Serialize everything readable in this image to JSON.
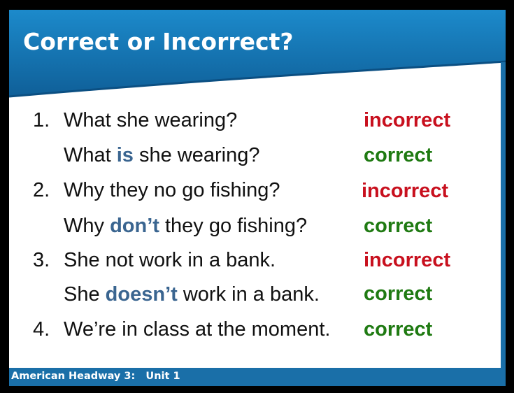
{
  "title": "Correct or Incorrect?",
  "footer": "American Headway 3:   Unit 1",
  "colors": {
    "header_blue": "#1a7fbf",
    "incorrect_red": "#c8101e",
    "correct_green": "#1f7a12",
    "keyword_blue": "#3a6590"
  },
  "items": [
    {
      "number": "1.",
      "before": "What she wearing?",
      "keyword": "",
      "after": "",
      "verdict": "incorrect"
    },
    {
      "number": "",
      "before": "What ",
      "keyword": "is",
      "after": " she wearing?",
      "verdict": "correct"
    },
    {
      "number": "2.",
      "before": "Why they no go fishing?",
      "keyword": "",
      "after": "",
      "verdict": "incorrect"
    },
    {
      "number": "",
      "before": "Why ",
      "keyword": "don’t",
      "after": " they go fishing?",
      "verdict": "correct"
    },
    {
      "number": "3.",
      "before": "She not work in a bank.",
      "keyword": "",
      "after": "",
      "verdict": "incorrect"
    },
    {
      "number": "",
      "before": "She ",
      "keyword": "doesn’t",
      "after": " work in a bank.",
      "verdict": "correct"
    },
    {
      "number": "4.",
      "before": "We’re in class at the moment.",
      "keyword": "",
      "after": "",
      "verdict": "correct"
    }
  ]
}
